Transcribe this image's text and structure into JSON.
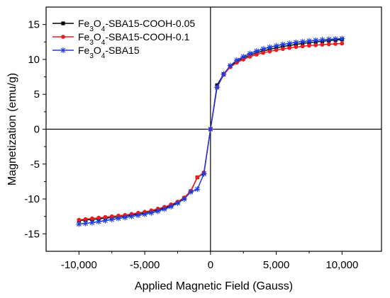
{
  "chart_data": {
    "type": "line",
    "xlabel": "Applied Magnetic Field (Gauss)",
    "ylabel": "Magnetization (emu/g)",
    "xlim": [
      -12500,
      13000
    ],
    "ylim": [
      -17.5,
      17.5
    ],
    "xticks": [
      -10000,
      -5000,
      0,
      5000,
      10000
    ],
    "xtick_labels": [
      "-10,000",
      "-5,000",
      "0",
      "5,000",
      "10,000"
    ],
    "yticks": [
      -15,
      -10,
      -5,
      0,
      5,
      10,
      15
    ],
    "ytick_labels": [
      "-15",
      "-10",
      "-5",
      "0",
      "5",
      "10",
      "15"
    ],
    "grid": false,
    "legend_position": "top-left",
    "zero_lines": true,
    "x": [
      -10000,
      -9500,
      -9000,
      -8500,
      -8000,
      -7500,
      -7000,
      -6500,
      -6000,
      -5500,
      -5000,
      -4500,
      -4000,
      -3500,
      -3000,
      -2500,
      -2000,
      -1500,
      -1000,
      -500,
      0,
      500,
      1000,
      1500,
      2000,
      2500,
      3000,
      3500,
      4000,
      4500,
      5000,
      5500,
      6000,
      6500,
      7000,
      7500,
      8000,
      8500,
      9000,
      9500,
      10000
    ],
    "series": [
      {
        "name": "Fe3O4-SBA15-COOH-0.05",
        "legend_label": {
          "pre": "Fe",
          "s1": "3",
          "mid": "O",
          "s2": "4",
          "post": "-SBA15-COOH-0.05"
        },
        "color": "#000000",
        "marker": "square",
        "values": [
          -13.1,
          -13.0,
          -12.95,
          -12.85,
          -12.75,
          -12.65,
          -12.55,
          -12.45,
          -12.3,
          -12.15,
          -12.0,
          -11.8,
          -11.55,
          -11.3,
          -10.95,
          -10.5,
          -9.9,
          -8.9,
          -6.9,
          -6.3,
          0,
          6.3,
          7.9,
          9.0,
          9.7,
          10.2,
          10.6,
          10.95,
          11.2,
          11.45,
          11.65,
          11.85,
          12.0,
          12.15,
          12.3,
          12.4,
          12.5,
          12.6,
          12.7,
          12.78,
          12.85
        ]
      },
      {
        "name": "Fe3O4-SBA15-COOH-0.1",
        "legend_label": {
          "pre": "Fe",
          "s1": "3",
          "mid": "O",
          "s2": "4",
          "post": "-SBA15-COOH-0.1"
        },
        "color": "#ee1c1c",
        "marker": "circle",
        "values": [
          -13.0,
          -12.9,
          -12.8,
          -12.7,
          -12.6,
          -12.5,
          -12.4,
          -12.3,
          -12.15,
          -12.0,
          -11.85,
          -11.65,
          -11.4,
          -11.15,
          -10.8,
          -10.4,
          -9.8,
          -8.85,
          -6.9,
          -6.2,
          0,
          6.0,
          7.8,
          8.9,
          9.55,
          10.0,
          10.4,
          10.7,
          10.95,
          11.15,
          11.35,
          11.5,
          11.65,
          11.78,
          11.88,
          11.98,
          12.05,
          12.12,
          12.18,
          12.23,
          12.28
        ]
      },
      {
        "name": "Fe3O4-SBA15",
        "legend_label": {
          "pre": "Fe",
          "s1": "3",
          "mid": "O",
          "s2": "4",
          "post": "-SBA15"
        },
        "color": "#1f3de6",
        "marker": "star",
        "values": [
          -13.6,
          -13.5,
          -13.4,
          -13.25,
          -13.1,
          -12.95,
          -12.8,
          -12.65,
          -12.5,
          -12.35,
          -12.2,
          -12.0,
          -11.75,
          -11.45,
          -11.1,
          -10.6,
          -10.0,
          -9.0,
          -8.6,
          -6.4,
          0,
          6.0,
          7.9,
          9.1,
          9.9,
          10.4,
          10.85,
          11.2,
          11.5,
          11.75,
          11.95,
          12.15,
          12.3,
          12.45,
          12.55,
          12.65,
          12.75,
          12.82,
          12.88,
          12.93,
          12.98
        ]
      }
    ]
  }
}
